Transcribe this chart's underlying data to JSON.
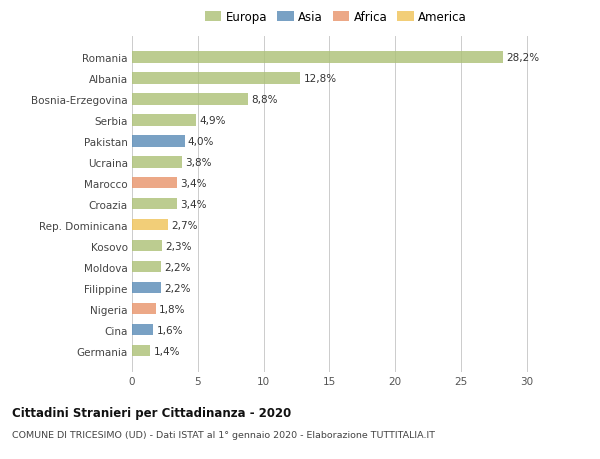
{
  "countries": [
    "Germania",
    "Cina",
    "Nigeria",
    "Filippine",
    "Moldova",
    "Kosovo",
    "Rep. Dominicana",
    "Croazia",
    "Marocco",
    "Ucraina",
    "Pakistan",
    "Serbia",
    "Bosnia-Erzegovina",
    "Albania",
    "Romania"
  ],
  "values": [
    1.4,
    1.6,
    1.8,
    2.2,
    2.2,
    2.3,
    2.7,
    3.4,
    3.4,
    3.8,
    4.0,
    4.9,
    8.8,
    12.8,
    28.2
  ],
  "labels": [
    "1,4%",
    "1,6%",
    "1,8%",
    "2,2%",
    "2,2%",
    "2,3%",
    "2,7%",
    "3,4%",
    "3,4%",
    "3,8%",
    "4,0%",
    "4,9%",
    "8,8%",
    "12,8%",
    "28,2%"
  ],
  "continents": [
    "Europa",
    "Asia",
    "Africa",
    "Asia",
    "Europa",
    "Europa",
    "America",
    "Europa",
    "Africa",
    "Europa",
    "Asia",
    "Europa",
    "Europa",
    "Europa",
    "Europa"
  ],
  "colors": {
    "Europa": "#adc178",
    "Asia": "#5b8db8",
    "Africa": "#e8956d",
    "America": "#f0c45a"
  },
  "bar_alpha": 0.82,
  "xlim": [
    0,
    31
  ],
  "xticks": [
    0,
    5,
    10,
    15,
    20,
    25,
    30
  ],
  "title1": "Cittadini Stranieri per Cittadinanza - 2020",
  "title2": "COMUNE DI TRICESIMO (UD) - Dati ISTAT al 1° gennaio 2020 - Elaborazione TUTTITALIA.IT",
  "background_color": "#ffffff",
  "grid_color": "#cccccc",
  "bar_height": 0.55,
  "label_fontsize": 7.5,
  "ytick_fontsize": 7.5,
  "xtick_fontsize": 7.5
}
